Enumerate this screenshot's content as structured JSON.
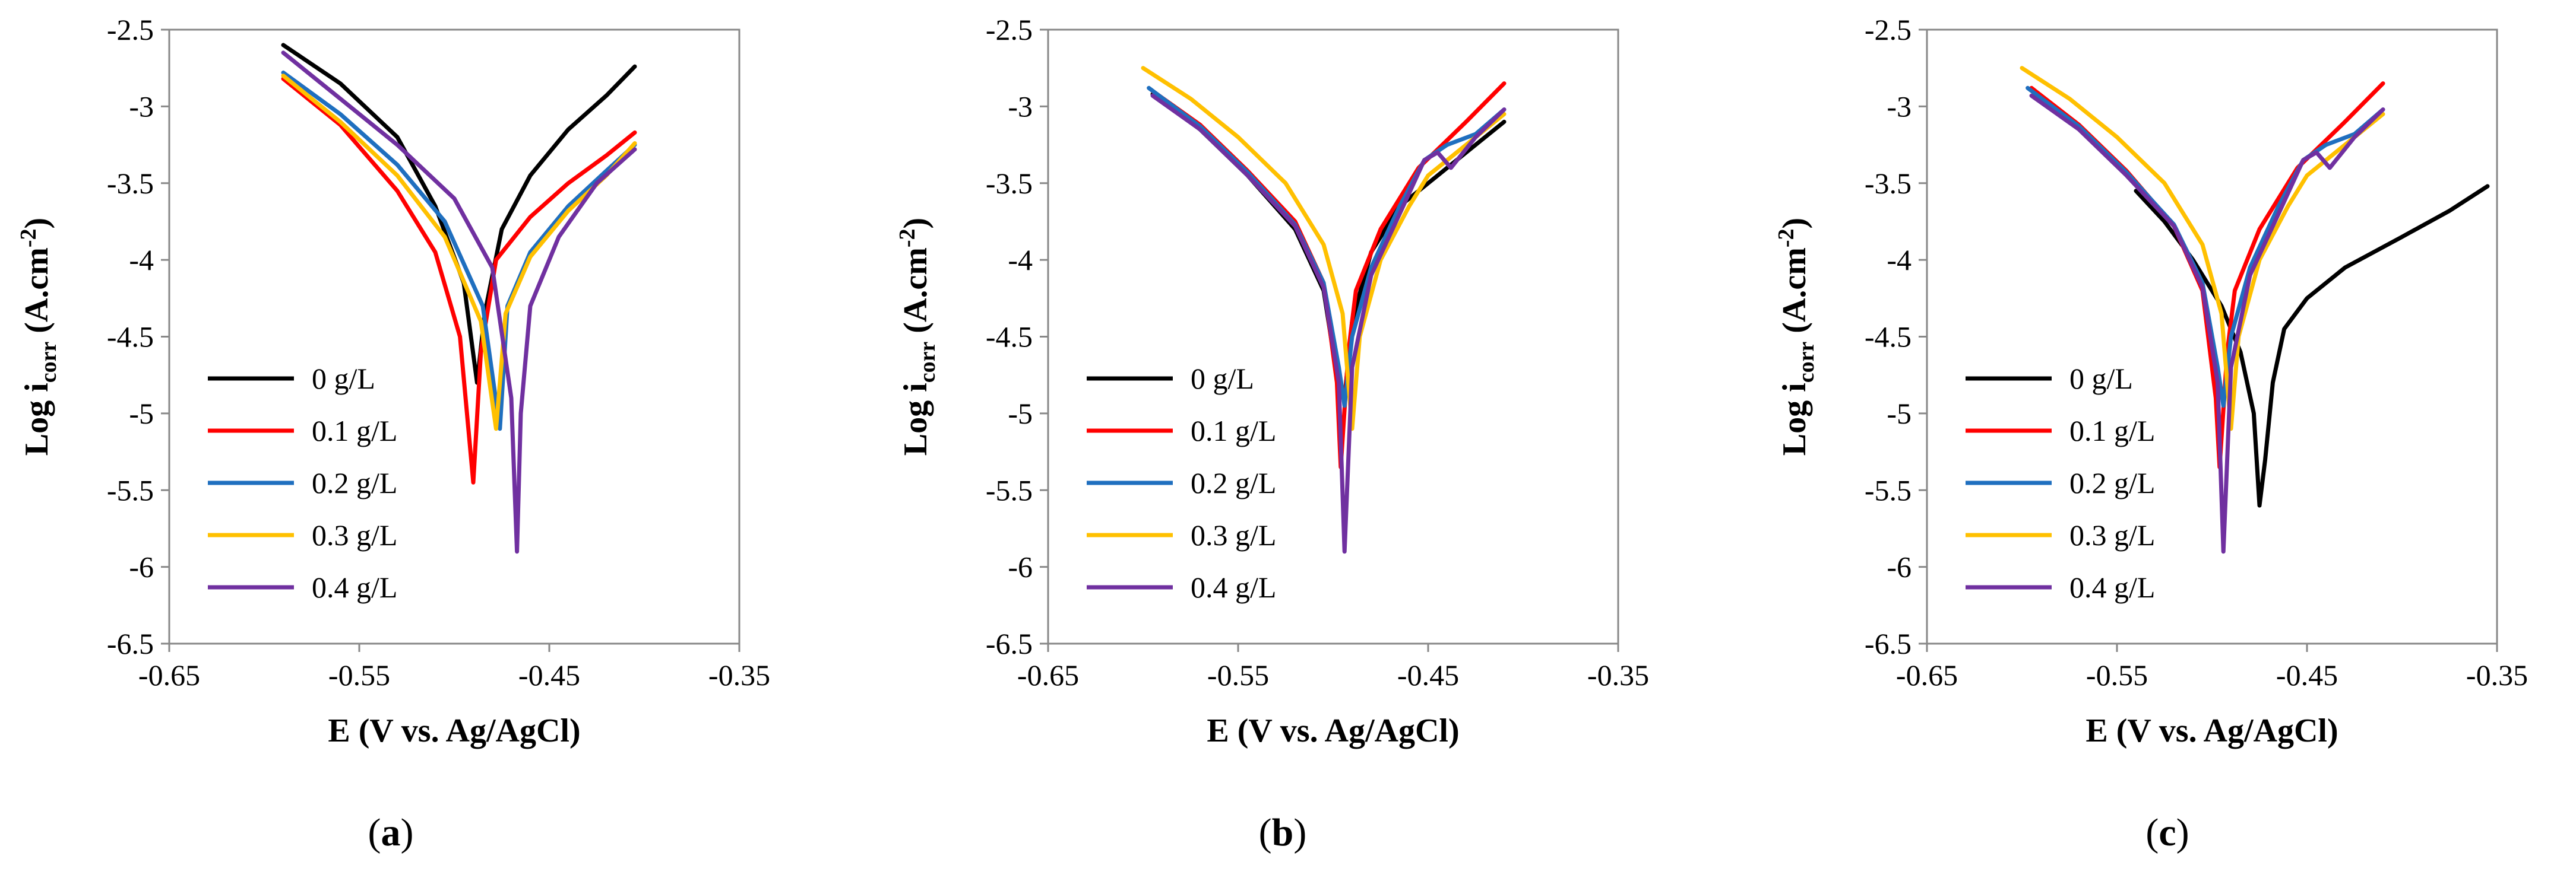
{
  "figure": {
    "ylabel_main": "Log i",
    "ylabel_sub": "corr",
    "ylabel_unit": " (A.cm",
    "ylabel_sup": "-2",
    "ylabel_close": ")",
    "xlabel": "E (V vs. Ag/AgCl)"
  },
  "colors": {
    "0 g/L": "#000000",
    "0.1 g/L": "#ff0000",
    "0.2 g/L": "#1f6fbf",
    "0.3 g/L": "#ffc000",
    "0.4 g/L": "#7030a0"
  },
  "chart_data": [
    {
      "type": "line",
      "caption_open": "(",
      "caption_letter": "a",
      "caption_close": ")",
      "xlabel": "E (V vs. Ag/AgCl)",
      "ylabel": "Log i corr (A.cm-2)",
      "xlim": [
        -0.65,
        -0.35
      ],
      "ylim": [
        -6.5,
        -2.5
      ],
      "xticks": [
        "-0.65",
        "-0.55",
        "-0.45",
        "-0.35"
      ],
      "yticks": [
        "-2.5",
        "-3",
        "-3.5",
        "-4",
        "-4.5",
        "-5",
        "-5.5",
        "-6",
        "-6.5"
      ],
      "legend": "bottom-left",
      "series": [
        {
          "name": "0 g/L",
          "points": [
            [
              -0.59,
              -2.6
            ],
            [
              -0.56,
              -2.85
            ],
            [
              -0.53,
              -3.2
            ],
            [
              -0.51,
              -3.65
            ],
            [
              -0.495,
              -4.15
            ],
            [
              -0.488,
              -4.8
            ],
            [
              -0.484,
              -4.35
            ],
            [
              -0.475,
              -3.8
            ],
            [
              -0.46,
              -3.45
            ],
            [
              -0.44,
              -3.15
            ],
            [
              -0.42,
              -2.93
            ],
            [
              -0.405,
              -2.74
            ]
          ]
        },
        {
          "name": "0.1 g/L",
          "points": [
            [
              -0.59,
              -2.82
            ],
            [
              -0.56,
              -3.12
            ],
            [
              -0.53,
              -3.55
            ],
            [
              -0.51,
              -3.95
            ],
            [
              -0.497,
              -4.5
            ],
            [
              -0.49,
              -5.45
            ],
            [
              -0.486,
              -4.6
            ],
            [
              -0.478,
              -4.0
            ],
            [
              -0.46,
              -3.72
            ],
            [
              -0.44,
              -3.5
            ],
            [
              -0.42,
              -3.32
            ],
            [
              -0.405,
              -3.17
            ]
          ]
        },
        {
          "name": "0.2 g/L",
          "points": [
            [
              -0.59,
              -2.78
            ],
            [
              -0.56,
              -3.05
            ],
            [
              -0.53,
              -3.38
            ],
            [
              -0.505,
              -3.75
            ],
            [
              -0.485,
              -4.3
            ],
            [
              -0.476,
              -5.1
            ],
            [
              -0.472,
              -4.3
            ],
            [
              -0.46,
              -3.95
            ],
            [
              -0.44,
              -3.65
            ],
            [
              -0.42,
              -3.42
            ],
            [
              -0.405,
              -3.25
            ]
          ]
        },
        {
          "name": "0.3 g/L",
          "points": [
            [
              -0.59,
              -2.8
            ],
            [
              -0.56,
              -3.1
            ],
            [
              -0.53,
              -3.45
            ],
            [
              -0.505,
              -3.85
            ],
            [
              -0.486,
              -4.4
            ],
            [
              -0.478,
              -5.1
            ],
            [
              -0.473,
              -4.35
            ],
            [
              -0.46,
              -3.98
            ],
            [
              -0.44,
              -3.68
            ],
            [
              -0.42,
              -3.45
            ],
            [
              -0.405,
              -3.24
            ]
          ]
        },
        {
          "name": "0.4 g/L",
          "points": [
            [
              -0.59,
              -2.65
            ],
            [
              -0.56,
              -2.95
            ],
            [
              -0.53,
              -3.25
            ],
            [
              -0.5,
              -3.6
            ],
            [
              -0.48,
              -4.05
            ],
            [
              -0.47,
              -4.9
            ],
            [
              -0.467,
              -5.9
            ],
            [
              -0.465,
              -5.0
            ],
            [
              -0.46,
              -4.3
            ],
            [
              -0.445,
              -3.85
            ],
            [
              -0.425,
              -3.5
            ],
            [
              -0.405,
              -3.28
            ]
          ]
        }
      ]
    },
    {
      "type": "line",
      "caption_open": "(",
      "caption_letter": "b",
      "caption_close": ")",
      "xlabel": "E (V vs. Ag/AgCl)",
      "ylabel": "Log i corr (A.cm-2)",
      "xlim": [
        -0.65,
        -0.35
      ],
      "ylim": [
        -6.5,
        -2.5
      ],
      "xticks": [
        "-0.65",
        "-0.55",
        "-0.45",
        "-0.35"
      ],
      "yticks": [
        "-2.5",
        "-3",
        "-3.5",
        "-4",
        "-4.5",
        "-5",
        "-5.5",
        "-6",
        "-6.5"
      ],
      "legend": "bottom-left",
      "series": [
        {
          "name": "0 g/L",
          "points": [
            [
              -0.595,
              -2.92
            ],
            [
              -0.57,
              -3.15
            ],
            [
              -0.545,
              -3.45
            ],
            [
              -0.52,
              -3.8
            ],
            [
              -0.505,
              -4.2
            ],
            [
              -0.498,
              -4.75
            ],
            [
              -0.494,
              -4.9
            ],
            [
              -0.49,
              -4.4
            ],
            [
              -0.48,
              -3.95
            ],
            [
              -0.465,
              -3.65
            ],
            [
              -0.45,
              -3.5
            ],
            [
              -0.43,
              -3.3
            ],
            [
              -0.41,
              -3.1
            ]
          ]
        },
        {
          "name": "0.1 g/L",
          "points": [
            [
              -0.595,
              -2.9
            ],
            [
              -0.57,
              -3.12
            ],
            [
              -0.545,
              -3.42
            ],
            [
              -0.52,
              -3.75
            ],
            [
              -0.505,
              -4.15
            ],
            [
              -0.498,
              -4.8
            ],
            [
              -0.496,
              -5.35
            ],
            [
              -0.492,
              -4.6
            ],
            [
              -0.488,
              -4.2
            ],
            [
              -0.475,
              -3.8
            ],
            [
              -0.455,
              -3.4
            ],
            [
              -0.43,
              -3.1
            ],
            [
              -0.41,
              -2.85
            ]
          ]
        },
        {
          "name": "0.2 g/L",
          "points": [
            [
              -0.597,
              -2.88
            ],
            [
              -0.57,
              -3.13
            ],
            [
              -0.545,
              -3.43
            ],
            [
              -0.52,
              -3.77
            ],
            [
              -0.505,
              -4.15
            ],
            [
              -0.497,
              -4.7
            ],
            [
              -0.494,
              -4.95
            ],
            [
              -0.49,
              -4.5
            ],
            [
              -0.48,
              -4.05
            ],
            [
              -0.465,
              -3.65
            ],
            [
              -0.452,
              -3.35
            ],
            [
              -0.44,
              -3.25
            ],
            [
              -0.425,
              -3.18
            ],
            [
              -0.41,
              -3.02
            ]
          ]
        },
        {
          "name": "0.3 g/L",
          "points": [
            [
              -0.6,
              -2.75
            ],
            [
              -0.575,
              -2.95
            ],
            [
              -0.55,
              -3.2
            ],
            [
              -0.525,
              -3.5
            ],
            [
              -0.505,
              -3.9
            ],
            [
              -0.495,
              -4.35
            ],
            [
              -0.49,
              -5.1
            ],
            [
              -0.486,
              -4.5
            ],
            [
              -0.475,
              -4.0
            ],
            [
              -0.46,
              -3.65
            ],
            [
              -0.45,
              -3.45
            ],
            [
              -0.43,
              -3.25
            ],
            [
              -0.41,
              -3.05
            ]
          ]
        },
        {
          "name": "0.4 g/L",
          "points": [
            [
              -0.595,
              -2.93
            ],
            [
              -0.57,
              -3.15
            ],
            [
              -0.545,
              -3.45
            ],
            [
              -0.52,
              -3.78
            ],
            [
              -0.505,
              -4.18
            ],
            [
              -0.497,
              -4.8
            ],
            [
              -0.494,
              -5.9
            ],
            [
              -0.49,
              -4.7
            ],
            [
              -0.48,
              -4.1
            ],
            [
              -0.465,
              -3.7
            ],
            [
              -0.452,
              -3.35
            ],
            [
              -0.445,
              -3.3
            ],
            [
              -0.438,
              -3.4
            ],
            [
              -0.425,
              -3.2
            ],
            [
              -0.41,
              -3.02
            ]
          ]
        }
      ]
    },
    {
      "type": "line",
      "caption_open": "(",
      "caption_letter": "c",
      "caption_close": ")",
      "xlabel": "E (V vs. Ag/AgCl)",
      "ylabel": "Log i corr (A.cm-2)",
      "xlim": [
        -0.65,
        -0.35
      ],
      "ylim": [
        -6.5,
        -2.5
      ],
      "xticks": [
        "-0.65",
        "-0.55",
        "-0.45",
        "-0.35"
      ],
      "yticks": [
        "-2.5",
        "-3",
        "-3.5",
        "-4",
        "-4.5",
        "-5",
        "-5.5",
        "-6",
        "-6.5"
      ],
      "legend": "bottom-left",
      "series": [
        {
          "name": "0 g/L",
          "points": [
            [
              -0.54,
              -3.55
            ],
            [
              -0.525,
              -3.75
            ],
            [
              -0.51,
              -4.0
            ],
            [
              -0.495,
              -4.3
            ],
            [
              -0.485,
              -4.6
            ],
            [
              -0.478,
              -5.0
            ],
            [
              -0.475,
              -5.6
            ],
            [
              -0.472,
              -5.3
            ],
            [
              -0.468,
              -4.8
            ],
            [
              -0.462,
              -4.45
            ],
            [
              -0.45,
              -4.25
            ],
            [
              -0.43,
              -4.05
            ],
            [
              -0.4,
              -3.85
            ],
            [
              -0.375,
              -3.68
            ],
            [
              -0.355,
              -3.52
            ]
          ]
        },
        {
          "name": "0.1 g/L",
          "points": [
            [
              -0.595,
              -2.88
            ],
            [
              -0.57,
              -3.12
            ],
            [
              -0.545,
              -3.42
            ],
            [
              -0.52,
              -3.78
            ],
            [
              -0.505,
              -4.2
            ],
            [
              -0.498,
              -4.9
            ],
            [
              -0.496,
              -5.35
            ],
            [
              -0.492,
              -4.6
            ],
            [
              -0.488,
              -4.2
            ],
            [
              -0.475,
              -3.8
            ],
            [
              -0.455,
              -3.4
            ],
            [
              -0.43,
              -3.1
            ],
            [
              -0.41,
              -2.85
            ]
          ]
        },
        {
          "name": "0.2 g/L",
          "points": [
            [
              -0.597,
              -2.88
            ],
            [
              -0.57,
              -3.13
            ],
            [
              -0.545,
              -3.43
            ],
            [
              -0.52,
              -3.77
            ],
            [
              -0.505,
              -4.15
            ],
            [
              -0.497,
              -4.7
            ],
            [
              -0.494,
              -4.95
            ],
            [
              -0.49,
              -4.5
            ],
            [
              -0.48,
              -4.05
            ],
            [
              -0.465,
              -3.65
            ],
            [
              -0.452,
              -3.35
            ],
            [
              -0.44,
              -3.25
            ],
            [
              -0.425,
              -3.18
            ],
            [
              -0.41,
              -3.02
            ]
          ]
        },
        {
          "name": "0.3 g/L",
          "points": [
            [
              -0.6,
              -2.75
            ],
            [
              -0.575,
              -2.95
            ],
            [
              -0.55,
              -3.2
            ],
            [
              -0.525,
              -3.5
            ],
            [
              -0.505,
              -3.9
            ],
            [
              -0.495,
              -4.35
            ],
            [
              -0.49,
              -5.1
            ],
            [
              -0.486,
              -4.5
            ],
            [
              -0.475,
              -4.0
            ],
            [
              -0.46,
              -3.65
            ],
            [
              -0.45,
              -3.45
            ],
            [
              -0.43,
              -3.25
            ],
            [
              -0.41,
              -3.05
            ]
          ]
        },
        {
          "name": "0.4 g/L",
          "points": [
            [
              -0.595,
              -2.93
            ],
            [
              -0.57,
              -3.15
            ],
            [
              -0.545,
              -3.45
            ],
            [
              -0.52,
              -3.78
            ],
            [
              -0.505,
              -4.18
            ],
            [
              -0.497,
              -4.8
            ],
            [
              -0.494,
              -5.9
            ],
            [
              -0.49,
              -4.7
            ],
            [
              -0.48,
              -4.1
            ],
            [
              -0.465,
              -3.7
            ],
            [
              -0.452,
              -3.35
            ],
            [
              -0.445,
              -3.3
            ],
            [
              -0.438,
              -3.4
            ],
            [
              -0.425,
              -3.2
            ],
            [
              -0.41,
              -3.02
            ]
          ]
        }
      ]
    }
  ]
}
